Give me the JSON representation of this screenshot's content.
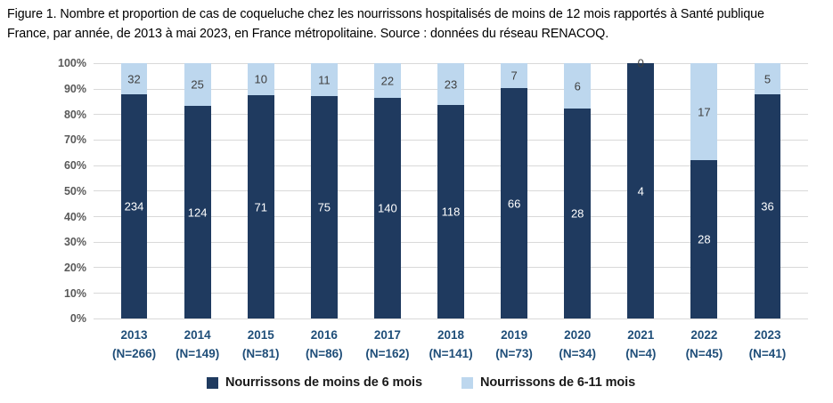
{
  "figure_caption": {
    "lines": [
      "Figure 1. Nombre et proportion de cas de coqueluche chez les nourrissons hospitalisés de moins de 12 mois rapportés à Santé publique",
      "France, par année, de 2013 à mai 2023, en France métropolitaine. Source : données du réseau RENACOQ."
    ]
  },
  "chart_data": {
    "type": "bar",
    "variant": "stacked-100-percent",
    "orientation": "vertical",
    "categories": [
      "2013",
      "2014",
      "2015",
      "2016",
      "2017",
      "2018",
      "2019",
      "2020",
      "2021",
      "2022",
      "2023"
    ],
    "category_sublabels": [
      "(N=266)",
      "(N=149)",
      "(N=81)",
      "(N=86)",
      "(N=162)",
      "(N=141)",
      "(N=73)",
      "(N=34)",
      "(N=4)",
      "(N=45)",
      "(N=41)"
    ],
    "totals": [
      266,
      149,
      81,
      86,
      162,
      141,
      73,
      34,
      4,
      45,
      41
    ],
    "series": [
      {
        "name": "Nourrissons de moins de 6 mois",
        "color": "#1f3a5f",
        "label_color": "#ffffff",
        "values": [
          234,
          124,
          71,
          75,
          140,
          118,
          66,
          28,
          4,
          28,
          36
        ]
      },
      {
        "name": "Nourrissons de 6-11 mois",
        "color": "#bdd7ee",
        "label_color": "#404040",
        "values": [
          32,
          25,
          10,
          11,
          22,
          23,
          7,
          6,
          0,
          17,
          5
        ]
      }
    ],
    "y_axis": {
      "ticks": [
        "100%",
        "90%",
        "80%",
        "70%",
        "60%",
        "50%",
        "40%",
        "30%",
        "20%",
        "10%",
        "0%"
      ],
      "min": 0,
      "max": 100
    },
    "grid": true,
    "legend_position": "bottom"
  },
  "style": {
    "colors": {
      "x_axis_label": "#1f4e79",
      "y_axis_label": "#595959",
      "gridline": "#d9d9d9",
      "legend_text": "#1a1a1a"
    }
  }
}
